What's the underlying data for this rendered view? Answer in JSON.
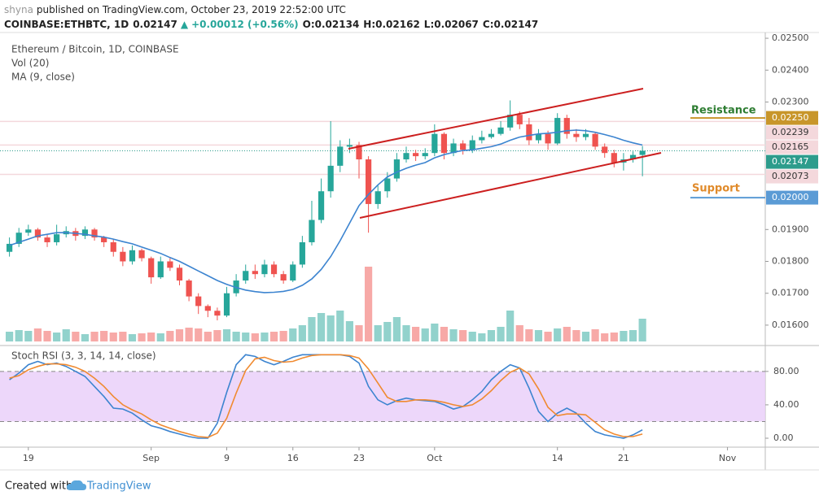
{
  "header": {
    "author": "shyna",
    "published": "published on TradingView.com, October 23, 2019 22:52:00 UTC",
    "symbol": "COINBASE:ETHBTC, 1D",
    "last": "0.02147",
    "arrow": "▲",
    "change": "+0.00012 (+0.56%)",
    "open": "O:0.02134",
    "high": "H:0.02162",
    "low": "L:0.02067",
    "close": "C:0.02147"
  },
  "chart_data": {
    "type": "candlestick",
    "title": "Ethereum / Bitcoin, 1D, COINBASE",
    "volume_title": "Vol (20)",
    "up_color": "#26a69a",
    "down_color": "#ef5350",
    "xlim": [
      -1,
      80
    ],
    "xticks": [
      {
        "value": 2,
        "label": "19"
      },
      {
        "value": 15,
        "label": "Sep"
      },
      {
        "value": 23,
        "label": "9"
      },
      {
        "value": 30,
        "label": "16"
      },
      {
        "value": 37,
        "label": "23"
      },
      {
        "value": 45,
        "label": "Oct"
      },
      {
        "value": 58,
        "label": "14"
      },
      {
        "value": 65,
        "label": "21"
      },
      {
        "value": 76,
        "label": "Nov"
      }
    ],
    "ylim": [
      0.01536,
      0.02518
    ],
    "yticks": [
      {
        "value": 0.025,
        "label": "0.02500"
      },
      {
        "value": 0.024,
        "label": "0.02400"
      },
      {
        "value": 0.023,
        "label": "0.02300"
      },
      {
        "value": 0.019,
        "label": "0.01900"
      },
      {
        "value": 0.018,
        "label": "0.01800"
      },
      {
        "value": 0.017,
        "label": "0.01700"
      },
      {
        "value": 0.016,
        "label": "0.01600"
      }
    ],
    "grid": false,
    "candles": {
      "open": [
        0.0183,
        0.01855,
        0.0189,
        0.019,
        0.01875,
        0.0186,
        0.01885,
        0.01895,
        0.0188,
        0.019,
        0.01875,
        0.0186,
        0.0183,
        0.018,
        0.01835,
        0.0181,
        0.0175,
        0.018,
        0.0178,
        0.0174,
        0.0169,
        0.0166,
        0.01645,
        0.0163,
        0.017,
        0.0174,
        0.0177,
        0.0176,
        0.0179,
        0.0176,
        0.0174,
        0.0179,
        0.0186,
        0.0193,
        0.0202,
        0.021,
        0.0216,
        0.02165,
        0.0212,
        0.0198,
        0.0202,
        0.0206,
        0.0212,
        0.0214,
        0.0213,
        0.0214,
        0.022,
        0.0214,
        0.0217,
        0.0215,
        0.0218,
        0.0219,
        0.022,
        0.0222,
        0.0226,
        0.0223,
        0.0218,
        0.022,
        0.0217,
        0.0225,
        0.022,
        0.0219,
        0.022,
        0.0216,
        0.0214,
        0.0211,
        0.0212,
        0.02134
      ],
      "high": [
        0.01875,
        0.01905,
        0.01915,
        0.01905,
        0.01885,
        0.01915,
        0.0191,
        0.01905,
        0.0191,
        0.01905,
        0.0188,
        0.0187,
        0.01845,
        0.0185,
        0.0184,
        0.01815,
        0.01815,
        0.0181,
        0.0179,
        0.01745,
        0.017,
        0.01665,
        0.01655,
        0.0172,
        0.0176,
        0.0179,
        0.0179,
        0.01805,
        0.018,
        0.0177,
        0.018,
        0.0188,
        0.0199,
        0.0206,
        0.0224,
        0.0218,
        0.02185,
        0.02175,
        0.0213,
        0.0204,
        0.0208,
        0.0214,
        0.0216,
        0.0215,
        0.02155,
        0.0223,
        0.02205,
        0.02185,
        0.0218,
        0.02195,
        0.0221,
        0.02215,
        0.0224,
        0.02305,
        0.0227,
        0.0225,
        0.02215,
        0.0221,
        0.02265,
        0.0226,
        0.02215,
        0.02215,
        0.02205,
        0.0217,
        0.0215,
        0.0214,
        0.02145,
        0.02162
      ],
      "low": [
        0.01815,
        0.01845,
        0.0188,
        0.01865,
        0.01845,
        0.0185,
        0.01875,
        0.01865,
        0.0187,
        0.01865,
        0.01845,
        0.01815,
        0.01785,
        0.0179,
        0.018,
        0.0173,
        0.01745,
        0.0177,
        0.01725,
        0.01675,
        0.01635,
        0.01625,
        0.01615,
        0.01625,
        0.0169,
        0.0173,
        0.01745,
        0.0175,
        0.0175,
        0.0173,
        0.01735,
        0.0178,
        0.0185,
        0.0192,
        0.02,
        0.0208,
        0.0214,
        0.0206,
        0.0189,
        0.01965,
        0.02,
        0.0205,
        0.0211,
        0.02115,
        0.0212,
        0.0213,
        0.0212,
        0.0213,
        0.02135,
        0.0214,
        0.0217,
        0.02185,
        0.02195,
        0.0221,
        0.02215,
        0.02165,
        0.0217,
        0.0215,
        0.02165,
        0.02185,
        0.02175,
        0.0218,
        0.0215,
        0.02125,
        0.02095,
        0.02085,
        0.0211,
        0.02067
      ],
      "close": [
        0.01855,
        0.0189,
        0.019,
        0.01875,
        0.0186,
        0.01885,
        0.01895,
        0.0188,
        0.019,
        0.01875,
        0.0186,
        0.0183,
        0.018,
        0.01835,
        0.0181,
        0.0175,
        0.018,
        0.0178,
        0.0174,
        0.0169,
        0.0166,
        0.01645,
        0.0163,
        0.017,
        0.0174,
        0.0177,
        0.0176,
        0.0179,
        0.0176,
        0.0174,
        0.0179,
        0.0186,
        0.0193,
        0.0202,
        0.021,
        0.0216,
        0.02165,
        0.0212,
        0.0198,
        0.0202,
        0.0206,
        0.0212,
        0.0214,
        0.0213,
        0.0214,
        0.022,
        0.0214,
        0.0217,
        0.0215,
        0.0218,
        0.0219,
        0.022,
        0.0222,
        0.0226,
        0.0223,
        0.0218,
        0.022,
        0.0217,
        0.0225,
        0.022,
        0.0219,
        0.022,
        0.0216,
        0.0214,
        0.0211,
        0.0212,
        0.02134,
        0.02147
      ]
    },
    "volume": [
      12,
      14,
      13,
      16,
      13,
      11,
      15,
      12,
      9,
      12,
      13,
      11,
      12,
      9,
      10,
      11,
      10,
      13,
      15,
      17,
      16,
      12,
      14,
      15,
      12,
      11,
      10,
      11,
      12,
      13,
      16,
      20,
      30,
      35,
      32,
      38,
      25,
      20,
      92,
      20,
      24,
      30,
      20,
      18,
      16,
      22,
      18,
      15,
      14,
      12,
      10,
      14,
      18,
      38,
      20,
      15,
      14,
      12,
      16,
      18,
      14,
      12,
      15,
      10,
      11,
      13,
      14,
      28
    ],
    "series": [
      {
        "name": "MA (9, close)",
        "color": "#3c84d0",
        "values": [
          0.0185,
          0.0186,
          0.0187,
          0.0188,
          0.01885,
          0.0189,
          0.0189,
          0.01888,
          0.01885,
          0.0188,
          0.01876,
          0.0187,
          0.01862,
          0.01855,
          0.01845,
          0.01835,
          0.01825,
          0.01812,
          0.018,
          0.01785,
          0.0177,
          0.01755,
          0.0174,
          0.01728,
          0.01718,
          0.0171,
          0.01705,
          0.01702,
          0.01703,
          0.01706,
          0.01712,
          0.01725,
          0.01745,
          0.01775,
          0.01815,
          0.01865,
          0.0192,
          0.01975,
          0.0201,
          0.0204,
          0.02065,
          0.0208,
          0.02092,
          0.02102,
          0.0211,
          0.02125,
          0.02135,
          0.02142,
          0.02148,
          0.0215,
          0.02155,
          0.0216,
          0.02168,
          0.0218,
          0.0219,
          0.02195,
          0.022,
          0.02202,
          0.02205,
          0.0221,
          0.02212,
          0.0221,
          0.02205,
          0.02198,
          0.0219,
          0.0218,
          0.02172,
          0.02165
        ]
      }
    ],
    "price_labels": [
      {
        "value": 0.0225,
        "label": "0.02250",
        "bg": "#c8962a",
        "fg": "#ffffff",
        "line": "short"
      },
      {
        "value": 0.02239,
        "label": "0.02239",
        "bg": "#f4d8dc",
        "fg": "#333333",
        "line": "full"
      },
      {
        "value": 0.02165,
        "label": "0.02165",
        "bg": "#f4d8dc",
        "fg": "#333333",
        "line": "full"
      },
      {
        "value": 0.02147,
        "label": "0.02147",
        "bg": "#2d9c8c",
        "fg": "#ffffff",
        "line": "dotted"
      },
      {
        "value": 0.02073,
        "label": "0.02073",
        "bg": "#f4d8dc",
        "fg": "#333333",
        "line": "full"
      },
      {
        "value": 0.02,
        "label": "0.02000",
        "bg": "#5b9bd5",
        "fg": "#ffffff",
        "line": "short"
      }
    ],
    "annotations": [
      "Resistance",
      "Support"
    ],
    "stoch_rsi": {
      "title": "Stoch RSI (3, 3, 14, 14, close)",
      "ylim": [
        -10.7,
        111
      ],
      "yticks": [
        {
          "value": 80,
          "label": "80.00"
        },
        {
          "value": 40,
          "label": "40.00"
        },
        {
          "value": 0,
          "label": "0.00"
        }
      ],
      "band": [
        20,
        80
      ],
      "band_color": "#e8cdf9",
      "series": [
        {
          "color": "#3c84d0",
          "values": [
            70,
            78,
            88,
            92,
            88,
            90,
            86,
            80,
            74,
            62,
            50,
            36,
            35,
            30,
            22,
            15,
            12,
            8,
            5,
            2,
            0,
            0,
            18,
            55,
            88,
            100,
            98,
            92,
            88,
            92,
            97,
            100,
            100,
            100,
            100,
            100,
            98,
            90,
            62,
            46,
            40,
            45,
            48,
            46,
            45,
            44,
            40,
            35,
            38,
            46,
            56,
            70,
            80,
            88,
            84,
            60,
            32,
            20,
            30,
            36,
            30,
            18,
            8,
            4,
            2,
            0,
            4,
            10
          ]
        },
        {
          "color": "#f08a30",
          "values": [
            72,
            75,
            82,
            86,
            89,
            89,
            88,
            85,
            80,
            72,
            62,
            50,
            40,
            34,
            29,
            22,
            16,
            12,
            8,
            5,
            2,
            1,
            6,
            24,
            54,
            81,
            95,
            97,
            93,
            91,
            92,
            96,
            99,
            100,
            100,
            100,
            99,
            96,
            83,
            66,
            49,
            44,
            44,
            46,
            46,
            45,
            43,
            40,
            38,
            40,
            47,
            57,
            69,
            79,
            84,
            77,
            59,
            37,
            27,
            29,
            29,
            28,
            19,
            10,
            5,
            2,
            2,
            5
          ]
        }
      ]
    }
  },
  "footer": {
    "created": "Created with",
    "brand": "TradingView"
  }
}
